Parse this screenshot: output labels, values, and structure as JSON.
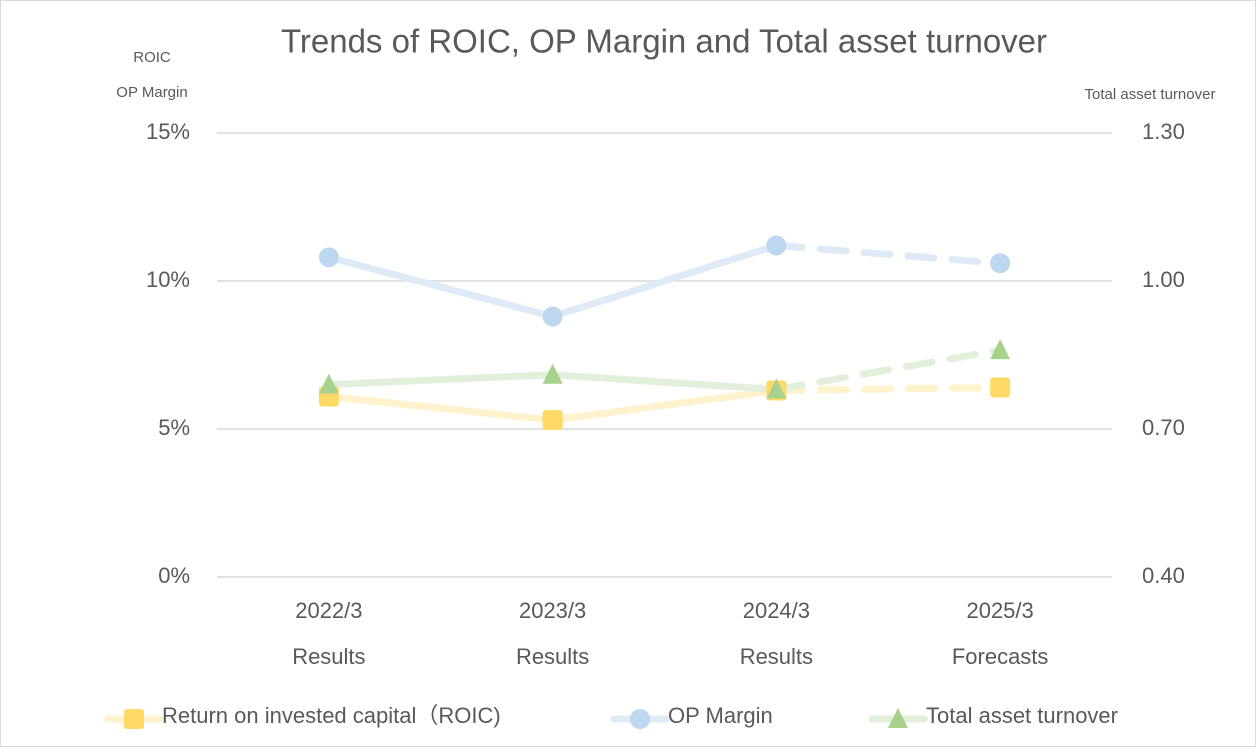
{
  "chart_data": {
    "type": "line",
    "title": "Trends of ROIC, OP Margin and Total asset turnover",
    "y_label": [
      "ROIC",
      "OP Margin"
    ],
    "y2_label": "Total asset turnover",
    "categories": [
      "2022/3",
      "2023/3",
      "2024/3",
      "2025/3"
    ],
    "category_sublabels": [
      "Results",
      "Results",
      "Results",
      "Forecasts"
    ],
    "dashed_from_index": 2,
    "ylim": [
      0,
      15
    ],
    "yticks": [
      {
        "value": 0,
        "label": "0%"
      },
      {
        "value": 5,
        "label": "5%"
      },
      {
        "value": 10,
        "label": "10%"
      },
      {
        "value": 15,
        "label": "15%"
      }
    ],
    "y2lim": [
      0.4,
      1.3
    ],
    "y2ticks": [
      {
        "value": 0.4,
        "label": "0.40"
      },
      {
        "value": 0.7,
        "label": "0.70"
      },
      {
        "value": 1.0,
        "label": "1.00"
      },
      {
        "value": 1.3,
        "label": "1.30"
      }
    ],
    "grid": true,
    "legend": "bottom",
    "series": [
      {
        "name": "Return on invested capital（ROIC)",
        "color": "#fff2cc",
        "marker_color": "#ffd966",
        "marker": "square",
        "values": [
          6.1,
          5.3,
          6.3,
          6.4
        ]
      },
      {
        "name": "OP Margin",
        "color": "#deebf7",
        "marker_color": "#bdd7ee",
        "marker": "circle",
        "values": [
          10.8,
          8.8,
          11.2,
          10.6
        ]
      },
      {
        "name": "Total asset turnover",
        "color": "#e2efda",
        "marker_color": "#a9d18e",
        "marker": "triangle",
        "axis": "y2",
        "values": [
          0.79,
          0.81,
          0.78,
          0.86
        ]
      }
    ]
  }
}
